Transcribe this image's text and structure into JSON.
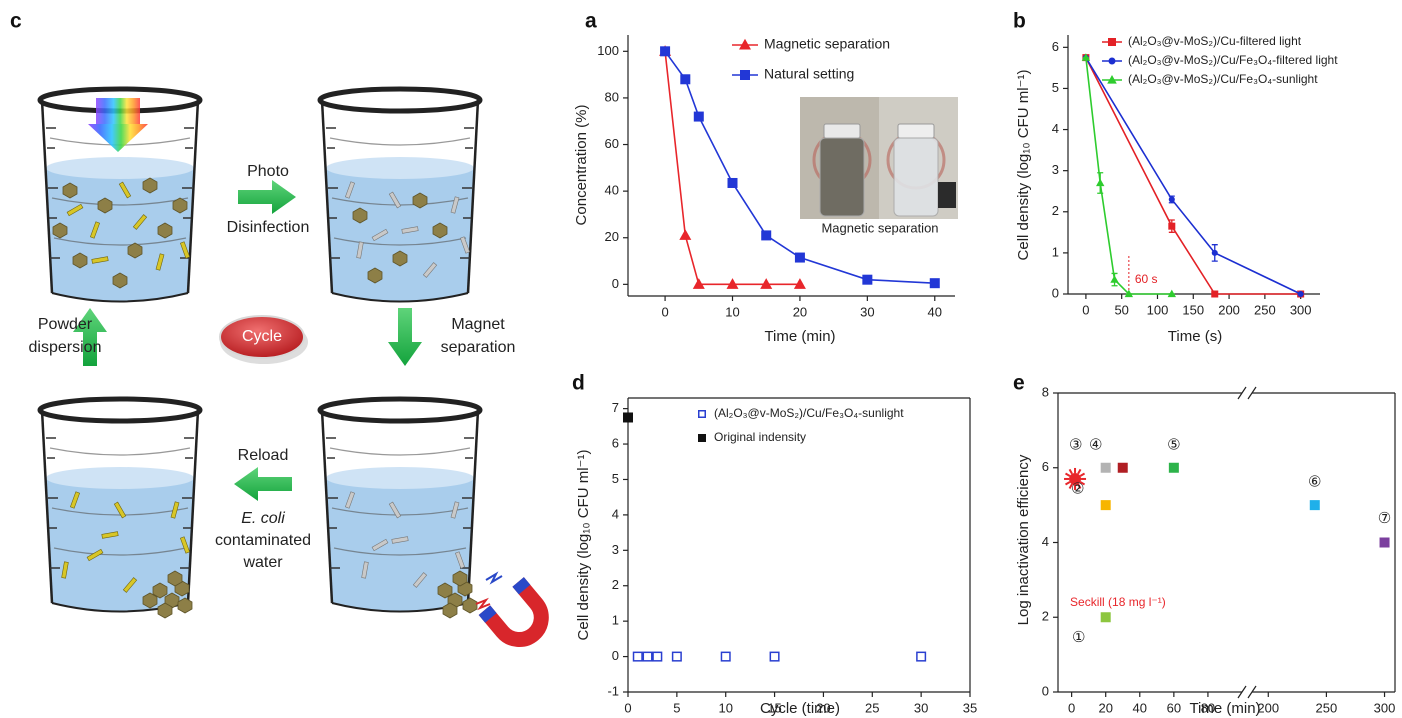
{
  "diagram": {
    "label": "c",
    "cycle": "Cycle",
    "steps": [
      {
        "lines": [
          "Photo",
          "Disinfection"
        ]
      },
      {
        "lines": [
          "Magnet",
          "separation"
        ]
      },
      {
        "lines": [
          "Reload",
          "E. coli",
          "contaminated",
          "water"
        ]
      },
      {
        "lines": [
          "Powder",
          "dispersion"
        ]
      }
    ]
  },
  "chart_data": [
    {
      "type": "line",
      "label": "a",
      "xlabel": "Time (min)",
      "ylabel": "Concentration (%)",
      "xlim": [
        -5.5,
        43
      ],
      "ylim": [
        -5,
        107
      ],
      "xticks": [
        0,
        10,
        20,
        30,
        40
      ],
      "yticks": [
        0,
        20,
        40,
        60,
        80,
        100
      ],
      "legend": true,
      "inset_caption": "Magnetic separation",
      "series": [
        {
          "name": "Magnetic separation",
          "color": "#e8262b",
          "marker": "triangle",
          "x": [
            0,
            3,
            5,
            10,
            15,
            20
          ],
          "values": [
            100,
            21,
            0,
            0,
            0,
            0
          ]
        },
        {
          "name": "Natural setting",
          "color": "#2237d6",
          "marker": "square",
          "x": [
            0,
            3,
            5,
            10,
            15,
            20,
            30,
            40
          ],
          "values": [
            100,
            88,
            72,
            43.5,
            21,
            11.5,
            2,
            0.5
          ]
        }
      ]
    },
    {
      "type": "line",
      "label": "b",
      "xlabel": "Time (s)",
      "ylabel": "Cell density (log₁₀ CFU ml⁻¹)",
      "xlim": [
        -25,
        327
      ],
      "ylim": [
        0,
        6.3
      ],
      "xticks": [
        0,
        50,
        100,
        150,
        200,
        250,
        300
      ],
      "yticks": [
        0,
        1,
        2,
        3,
        4,
        5,
        6
      ],
      "legend": true,
      "annotations": [
        {
          "text": "60 s",
          "x": 60
        }
      ],
      "series": [
        {
          "name": "(Al₂O₃@v-MoS₂)/Cu-filtered light",
          "color": "#e32126",
          "marker": "square",
          "x": [
            0,
            120,
            180,
            300
          ],
          "values": [
            5.75,
            1.65,
            0,
            0
          ],
          "errors": [
            0,
            0.15,
            0,
            0
          ]
        },
        {
          "name": "(Al₂O₃@v-MoS₂)/Cu/Fe₃O₄-filtered light",
          "color": "#1c2fd1",
          "marker": "circle",
          "x": [
            0,
            120,
            180,
            300
          ],
          "values": [
            5.75,
            2.3,
            1.0,
            0
          ],
          "errors": [
            0,
            0.08,
            0.2,
            0
          ]
        },
        {
          "name": "(Al₂O₃@v-MoS₂)/Cu/Fe₃O₄-sunlight",
          "color": "#2ecc2e",
          "marker": "triangle",
          "x": [
            0,
            20,
            40,
            60,
            120
          ],
          "values": [
            5.75,
            2.7,
            0.35,
            0,
            0
          ],
          "errors": [
            0,
            0.25,
            0.15,
            0,
            0
          ]
        }
      ]
    },
    {
      "type": "scatter",
      "label": "d",
      "xlabel": "Cycle (time)",
      "ylabel": "Cell density (log₁₀ CFU ml⁻¹)",
      "xlim": [
        0,
        35
      ],
      "ylim": [
        -1,
        7.3
      ],
      "xticks": [
        0,
        5,
        10,
        15,
        20,
        25,
        30,
        35
      ],
      "yticks": [
        -1,
        0,
        1,
        2,
        3,
        4,
        5,
        6,
        7
      ],
      "legend": true,
      "frame": true,
      "series": [
        {
          "name": "(Al₂O₃@v-MoS₂)/Cu/Fe₃O₄-sunlight",
          "color": "#2a3fd0",
          "marker": "open-square",
          "x": [
            1,
            2,
            3,
            5,
            10,
            15,
            30
          ],
          "values": [
            0,
            0,
            0,
            0,
            0,
            0,
            0
          ]
        },
        {
          "name": "Original indensity",
          "color": "#111111",
          "marker": "square",
          "x": [
            0
          ],
          "values": [
            6.75
          ]
        }
      ]
    },
    {
      "type": "scatter",
      "label": "e",
      "xlabel": "Time (min)",
      "ylabel": "Log inactivation efficiency",
      "xlim": [
        -8,
        309
      ],
      "xbreak": [
        100,
        186
      ],
      "ylim": [
        0,
        8
      ],
      "xticks": [
        0,
        20,
        40,
        60,
        80,
        200,
        250,
        300
      ],
      "yticks": [
        0,
        2,
        4,
        6,
        8
      ],
      "frame": true,
      "point_labels": true,
      "series": [
        {
          "name": "Seckill (18 mg l⁻¹)",
          "color": "#e8262b",
          "marker": "sun",
          "x": [
            2
          ],
          "values": [
            5.7
          ]
        },
        {
          "name": "①",
          "color": "#8dc63f",
          "marker": "square",
          "x": [
            20
          ],
          "values": [
            2
          ]
        },
        {
          "name": "②",
          "color": "#f7b500",
          "marker": "square",
          "x": [
            20
          ],
          "values": [
            5
          ]
        },
        {
          "name": "③",
          "color": "#b3b3b3",
          "marker": "square",
          "x": [
            20
          ],
          "values": [
            6
          ]
        },
        {
          "name": "④",
          "color": "#b01e23",
          "marker": "square",
          "x": [
            30
          ],
          "values": [
            6
          ]
        },
        {
          "name": "⑤",
          "color": "#2db34a",
          "marker": "square",
          "x": [
            60
          ],
          "values": [
            6
          ]
        },
        {
          "name": "⑥",
          "color": "#1fb0ea",
          "marker": "square",
          "x": [
            240
          ],
          "values": [
            5
          ]
        },
        {
          "name": "⑦",
          "color": "#7b3f9e",
          "marker": "square",
          "x": [
            300
          ],
          "values": [
            4
          ]
        }
      ]
    }
  ]
}
